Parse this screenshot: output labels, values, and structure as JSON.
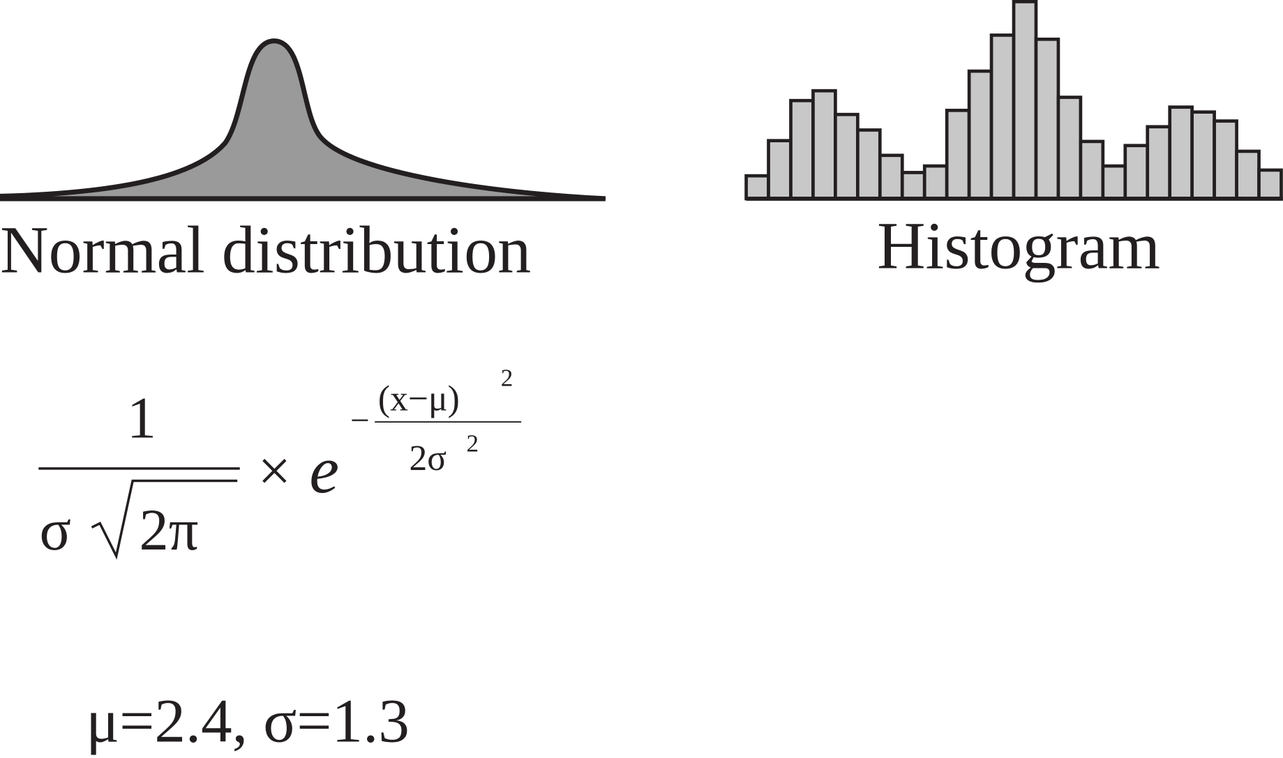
{
  "normal": {
    "label": "Normal distribution"
  },
  "histogram": {
    "label": "Histogram",
    "counts": [
      28,
      71,
      120,
      132,
      103,
      84,
      53,
      32,
      40,
      108,
      156,
      200,
      241,
      195,
      124,
      70,
      40,
      65,
      88,
      112,
      106,
      95,
      58,
      35
    ],
    "color": "#c8c8c8"
  },
  "formula": {
    "numerator": "1",
    "sigma": "σ",
    "radicand": "2π",
    "times": "×",
    "base": "e",
    "exponent_sign": "−",
    "exponent_numerator": "(x−μ)",
    "exponent_numerator_power": "2",
    "exponent_denominator": "2σ",
    "exponent_denominator_power": "2"
  },
  "parameters": "μ=2.4, σ=1.3"
}
